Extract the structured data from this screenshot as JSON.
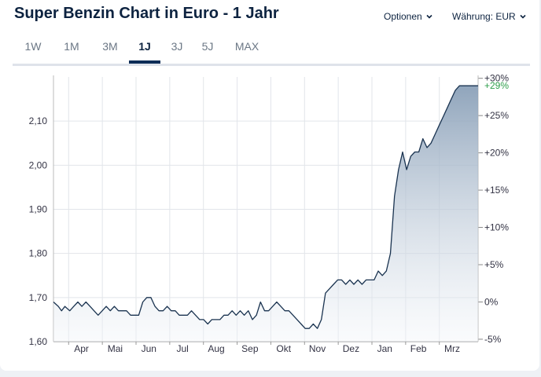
{
  "header": {
    "title": "Super Benzin Chart in Euro - 1 Jahr",
    "options_label": "Optionen",
    "currency_label": "Währung: EUR"
  },
  "tabs": [
    {
      "label": "1W",
      "active": false
    },
    {
      "label": "1M",
      "active": false
    },
    {
      "label": "3M",
      "active": false
    },
    {
      "label": "1J",
      "active": true
    },
    {
      "label": "3J",
      "active": false
    },
    {
      "label": "5J",
      "active": false
    },
    {
      "label": "MAX",
      "active": false
    }
  ],
  "colors": {
    "line": "#1a3350",
    "area_top": "#8aa0b8",
    "area_bottom": "#f2f5f9",
    "grid": "#e2e5ea",
    "accent": "#0d2d57",
    "positive": "#2e9e4a"
  },
  "chart_data": {
    "type": "area",
    "title": "Super Benzin Chart in Euro - 1 Jahr",
    "xlabel": "",
    "ylabel": "",
    "grid": true,
    "x_tick_labels": [
      "Apr",
      "Mai",
      "Jun",
      "Jul",
      "Aug",
      "Sep",
      "Okt",
      "Nov",
      "Dez",
      "Jan",
      "Feb",
      "Mrz"
    ],
    "y_ticks": [
      "1,60",
      "1,70",
      "1,80",
      "1,90",
      "2,00",
      "2,10"
    ],
    "y_range": [
      1.6,
      2.2
    ],
    "right_ticks": [
      "-5%",
      "0%",
      "+5%",
      "+10%",
      "+15%",
      "+20%",
      "+25%",
      "+30%"
    ],
    "current_change_label": "+29%",
    "x": [
      0,
      0.6,
      1.0,
      1.4,
      2.0,
      2.5,
      3.0,
      3.5,
      4.0,
      4.5,
      5.0,
      5.5,
      6.0,
      6.5,
      7.0,
      7.5,
      8.0,
      8.5,
      9.0,
      9.5,
      10.0,
      10.5,
      11.0,
      11.5,
      12.0,
      12.5,
      13.0,
      13.5,
      14.0,
      14.5,
      15.0,
      15.5,
      16.0,
      16.5,
      17.0,
      17.5,
      18.0,
      18.5,
      19.0,
      19.5,
      20.0,
      20.5,
      21.0,
      21.5,
      22.0,
      22.5,
      23.0,
      23.5,
      24.0,
      24.5,
      25.0,
      25.5,
      26.0,
      26.5,
      27.0,
      27.5,
      28.0,
      28.5,
      29.0,
      29.5,
      30.0,
      30.5,
      31.0,
      31.5,
      32.0,
      32.5,
      33.0,
      33.5,
      34.0,
      34.5,
      35.0,
      35.5,
      36.0,
      36.5,
      37.0,
      37.5,
      38.0,
      38.5,
      39.0,
      39.5,
      40.0,
      40.5,
      41.0,
      41.5,
      42.0,
      42.5,
      43.0,
      43.5,
      44.0,
      44.5,
      45.0,
      45.5,
      46.0,
      46.5,
      47.0,
      47.5,
      48.0,
      48.5,
      49.0,
      49.5,
      50.0,
      50.5,
      51.0,
      51.5,
      52.0,
      52.3
    ],
    "series": [
      {
        "values": [
          1.69,
          1.68,
          1.67,
          1.68,
          1.67,
          1.68,
          1.69,
          1.68,
          1.69,
          1.68,
          1.67,
          1.66,
          1.67,
          1.68,
          1.67,
          1.68,
          1.67,
          1.67,
          1.67,
          1.66,
          1.66,
          1.66,
          1.69,
          1.7,
          1.7,
          1.68,
          1.67,
          1.67,
          1.68,
          1.67,
          1.67,
          1.66,
          1.66,
          1.66,
          1.67,
          1.66,
          1.65,
          1.65,
          1.64,
          1.65,
          1.65,
          1.65,
          1.66,
          1.66,
          1.67,
          1.66,
          1.67,
          1.66,
          1.67,
          1.65,
          1.66,
          1.69,
          1.67,
          1.67,
          1.68,
          1.69,
          1.68,
          1.67,
          1.67,
          1.66,
          1.65,
          1.64,
          1.63,
          1.63,
          1.64,
          1.63,
          1.65,
          1.71,
          1.72,
          1.73,
          1.74,
          1.74,
          1.73,
          1.74,
          1.73,
          1.74,
          1.73,
          1.74,
          1.74,
          1.74,
          1.76,
          1.75,
          1.76,
          1.8,
          1.93,
          1.99,
          2.03,
          1.99,
          2.02,
          2.03,
          2.03,
          2.06,
          2.04,
          2.05,
          2.07,
          2.09,
          2.11,
          2.13,
          2.15,
          2.17,
          2.18,
          2.18,
          2.18,
          2.18,
          2.18,
          2.18
        ]
      }
    ]
  }
}
